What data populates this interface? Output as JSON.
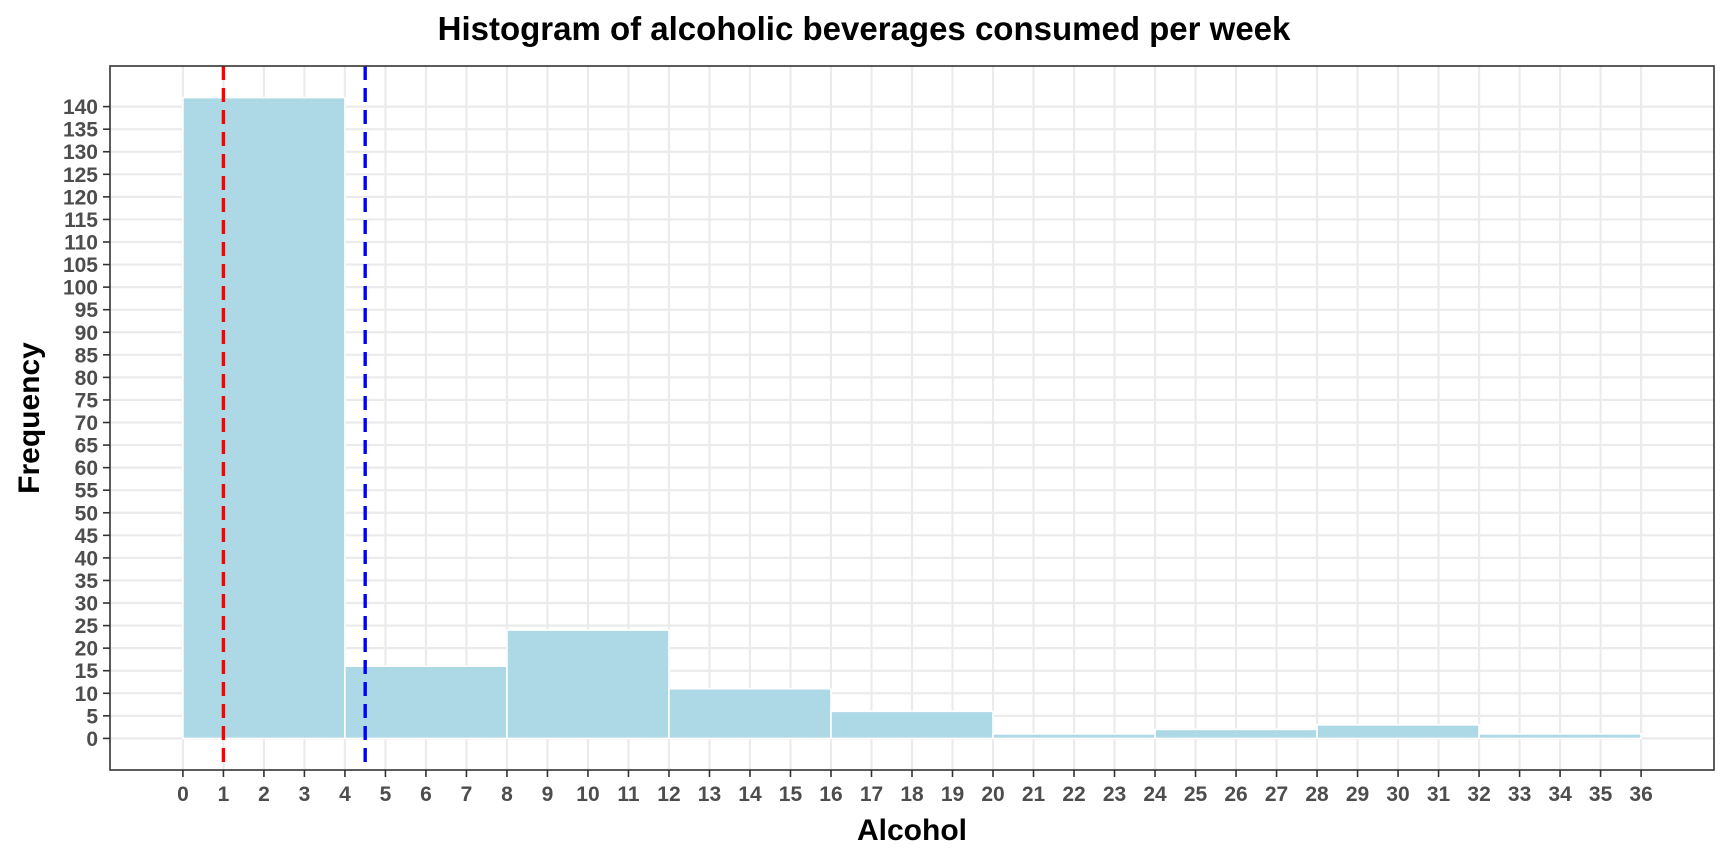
{
  "chart_data": {
    "type": "bar",
    "title": "Histogram of alcoholic beverages consumed per week",
    "xlabel": "Alcohol",
    "ylabel": "Frequency",
    "bins": [
      {
        "start": 0,
        "end": 4,
        "count": 142
      },
      {
        "start": 4,
        "end": 8,
        "count": 16
      },
      {
        "start": 8,
        "end": 12,
        "count": 24
      },
      {
        "start": 12,
        "end": 16,
        "count": 11
      },
      {
        "start": 16,
        "end": 20,
        "count": 6
      },
      {
        "start": 20,
        "end": 24,
        "count": 1
      },
      {
        "start": 24,
        "end": 28,
        "count": 2
      },
      {
        "start": 28,
        "end": 32,
        "count": 3
      },
      {
        "start": 32,
        "end": 36,
        "count": 1
      }
    ],
    "xlim": [
      -1.8,
      37.8
    ],
    "ylim": [
      -7,
      149
    ],
    "x_ticks": [
      0,
      1,
      2,
      3,
      4,
      5,
      6,
      7,
      8,
      9,
      10,
      11,
      12,
      13,
      14,
      15,
      16,
      17,
      18,
      19,
      20,
      21,
      22,
      23,
      24,
      25,
      26,
      27,
      28,
      29,
      30,
      31,
      32,
      33,
      34,
      35,
      36
    ],
    "y_ticks": [
      0,
      5,
      10,
      15,
      20,
      25,
      30,
      35,
      40,
      45,
      50,
      55,
      60,
      65,
      70,
      75,
      80,
      85,
      90,
      95,
      100,
      105,
      110,
      115,
      120,
      125,
      130,
      135,
      140
    ],
    "reference_lines": [
      {
        "x": 1,
        "color": "#ff0000",
        "style": "dashed"
      },
      {
        "x": 4.5,
        "color": "#0000ff",
        "style": "dashed"
      }
    ],
    "bar_color": "#add8e6",
    "bar_border_color": "#ffffff",
    "grid": true,
    "grid_color": "#ebebeb",
    "legend": "none"
  }
}
